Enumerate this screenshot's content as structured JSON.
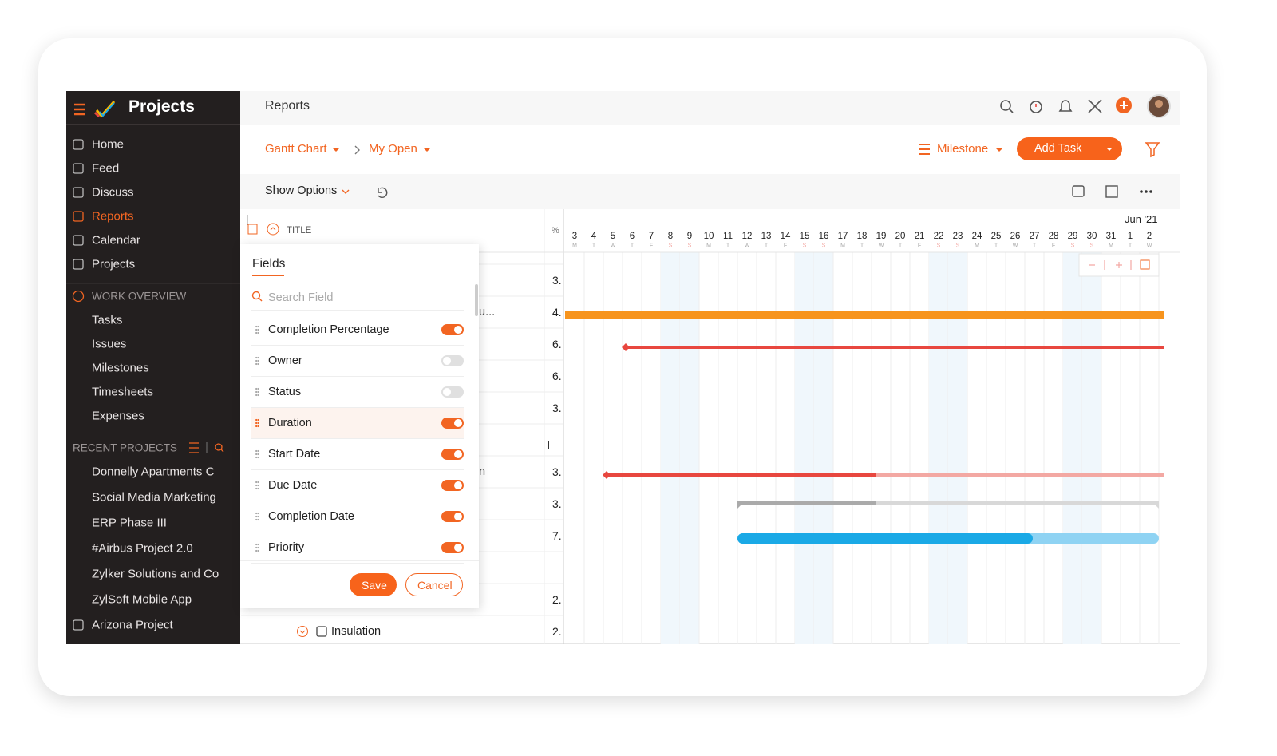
{
  "app": {
    "name": "Projects"
  },
  "sidebar": {
    "nav": [
      "Home",
      "Feed",
      "Discuss",
      "Reports",
      "Calendar",
      "Projects"
    ],
    "active": 3,
    "work_overview": {
      "title": "WORK OVERVIEW",
      "items": [
        "Tasks",
        "Issues",
        "Milestones",
        "Timesheets",
        "Expenses"
      ]
    },
    "recent": {
      "title": "RECENT PROJECTS",
      "items": [
        "Donnelly Apartments C",
        "Social Media Marketing",
        "ERP Phase III",
        "#Airbus Project 2.0",
        "Zylker Solutions and Co",
        "ZylSoft Mobile App"
      ]
    },
    "footer_project": "Arizona Project"
  },
  "header": {
    "title": "Reports"
  },
  "toolbar": {
    "view": "Gantt Chart",
    "filter": "My Open",
    "group": "Milestone",
    "add_task": "Add Task",
    "show_options": "Show Options"
  },
  "grid": {
    "title_col": "TITLE",
    "percent_col": "%",
    "rows": [
      {
        "label": "",
        "percent": "3."
      },
      {
        "label": "u...",
        "percent": "4."
      },
      {
        "label": "",
        "percent": "6."
      },
      {
        "label": "",
        "percent": "6."
      },
      {
        "label": "",
        "percent": "3."
      },
      {
        "label": "",
        "percent": ""
      },
      {
        "label": "n",
        "percent": "3."
      },
      {
        "label": "",
        "percent": "3."
      },
      {
        "label": "",
        "percent": "7."
      },
      {
        "label": "",
        "percent": ""
      },
      {
        "label": "",
        "percent": "2."
      },
      {
        "label": "Insulation",
        "percent": "2."
      }
    ]
  },
  "timeline": {
    "month": "Jun '21",
    "days": [
      "3",
      "4",
      "5",
      "6",
      "7",
      "8",
      "9",
      "10",
      "11",
      "12",
      "13",
      "14",
      "15",
      "16",
      "17",
      "18",
      "19",
      "20",
      "21",
      "22",
      "23",
      "24",
      "25",
      "26",
      "27",
      "28",
      "29",
      "30",
      "31",
      "1",
      "2"
    ],
    "weekdays": [
      "M",
      "T",
      "W",
      "T",
      "F",
      "S",
      "S",
      "M",
      "T",
      "W",
      "T",
      "F",
      "S",
      "S",
      "M",
      "T",
      "W",
      "T",
      "F",
      "S",
      "S",
      "M",
      "T",
      "W",
      "T",
      "F",
      "S",
      "S",
      "M",
      "T",
      "W"
    ]
  },
  "fields_panel": {
    "title": "Fields",
    "search": "Search Field",
    "fields": [
      {
        "name": "Completion Percentage",
        "on": true
      },
      {
        "name": "Owner",
        "on": false
      },
      {
        "name": "Status",
        "on": false
      },
      {
        "name": "Duration",
        "on": true
      },
      {
        "name": "Start Date",
        "on": true
      },
      {
        "name": "Due Date",
        "on": true
      },
      {
        "name": "Completion Date",
        "on": true
      },
      {
        "name": "Priority",
        "on": true
      }
    ],
    "save": "Save",
    "cancel": "Cancel"
  }
}
